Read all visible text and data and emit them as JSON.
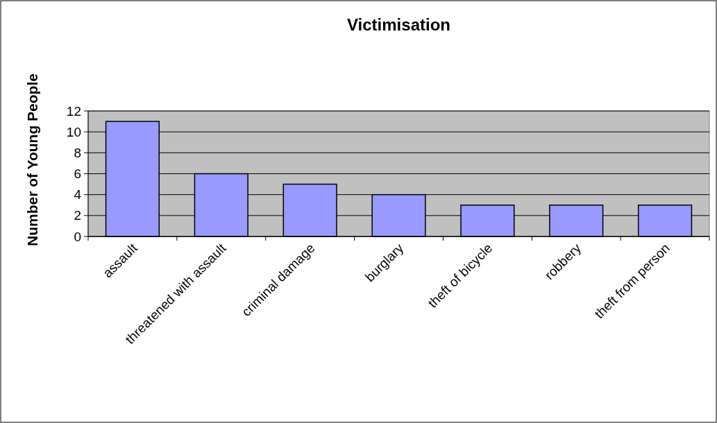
{
  "chart_data": {
    "type": "bar",
    "title": "Victimisation",
    "ylabel": "Number of Young People",
    "categories": [
      "assault",
      "threatened with assault",
      "criminal damage",
      "burglary",
      "theft of bicycle",
      "robbery",
      "theft from person"
    ],
    "values": [
      11,
      6,
      5,
      4,
      3,
      3,
      3
    ],
    "color": "#9999ff",
    "ylim": [
      0,
      12
    ],
    "yticks": [
      0,
      2,
      4,
      6,
      8,
      10,
      12
    ],
    "grid": "y"
  }
}
